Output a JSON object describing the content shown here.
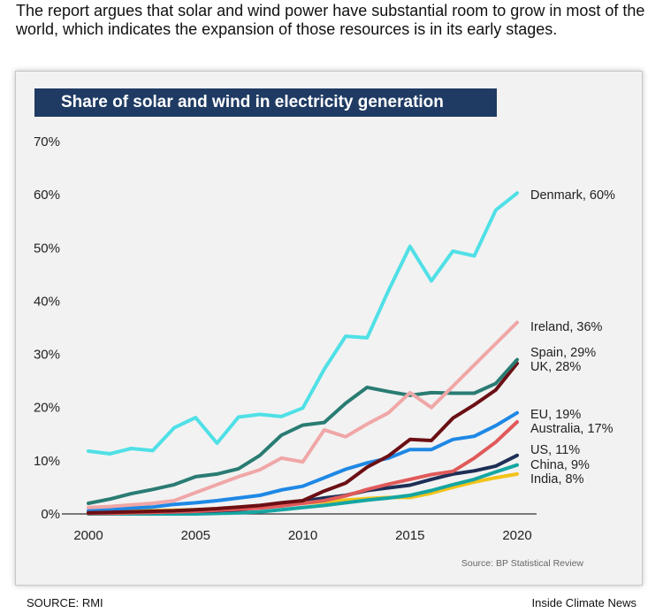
{
  "caption": "The report argues that solar and wind power have substantial room to grow in most of the world, which indicates the expansion of those resources is in its early stages.",
  "footer": {
    "left": "SOURCE: RMI",
    "right": "Inside Climate News"
  },
  "chart_data": {
    "type": "line",
    "title": "Share of solar and wind in electricity generation",
    "source": "Source: BP Statistical Review",
    "xlabel": "",
    "ylabel": "",
    "x_ticks": [
      2000,
      2005,
      2010,
      2015,
      2020
    ],
    "y_ticks": [
      "0%",
      "10%",
      "20%",
      "30%",
      "40%",
      "50%",
      "60%",
      "70%"
    ],
    "xlim": [
      1999,
      2021
    ],
    "ylim": [
      0,
      70
    ],
    "grid": false,
    "legend": "direct labels at line ends",
    "x": [
      2000,
      2001,
      2002,
      2003,
      2004,
      2005,
      2006,
      2007,
      2008,
      2009,
      2010,
      2011,
      2012,
      2013,
      2014,
      2015,
      2016,
      2017,
      2018,
      2019,
      2020
    ],
    "series": [
      {
        "name": "Denmark",
        "label": "Denmark, 60%",
        "color": "#4fe0e6",
        "values": [
          11.8,
          11.3,
          12.3,
          11.9,
          16.2,
          18.1,
          13.3,
          18.2,
          18.7,
          18.3,
          19.9,
          27.2,
          33.4,
          33.1,
          42.0,
          50.3,
          43.8,
          49.4,
          48.5,
          57.1,
          60.3
        ]
      },
      {
        "name": "Ireland",
        "label": "Ireland, 36%",
        "color": "#f0a7a7",
        "values": [
          1.2,
          1.4,
          1.7,
          2.0,
          2.5,
          4.0,
          5.5,
          7.0,
          8.3,
          10.5,
          9.8,
          15.8,
          14.5,
          16.9,
          19.0,
          22.8,
          20.0,
          24.0,
          28.0,
          32.0,
          36.0
        ]
      },
      {
        "name": "Spain",
        "label": "Spain, 29%",
        "color": "#2a7c73",
        "values": [
          2.0,
          2.8,
          3.8,
          4.6,
          5.5,
          7.0,
          7.5,
          8.5,
          11.0,
          14.8,
          16.7,
          17.2,
          20.8,
          23.8,
          23.0,
          22.3,
          22.8,
          22.7,
          22.7,
          24.5,
          29.0
        ]
      },
      {
        "name": "UK",
        "label": "UK, 28%",
        "color": "#6b0f14",
        "values": [
          0.2,
          0.3,
          0.4,
          0.5,
          0.6,
          0.8,
          1.0,
          1.3,
          1.6,
          2.1,
          2.5,
          4.3,
          5.8,
          8.8,
          10.9,
          14.0,
          13.8,
          18.0,
          20.5,
          23.3,
          28.3
        ]
      },
      {
        "name": "EU",
        "label": "EU, 19%",
        "color": "#1e88e5",
        "values": [
          0.6,
          0.8,
          1.1,
          1.3,
          1.8,
          2.1,
          2.5,
          3.0,
          3.5,
          4.5,
          5.2,
          6.8,
          8.4,
          9.6,
          10.5,
          12.1,
          12.1,
          14.0,
          14.6,
          16.6,
          19.0
        ]
      },
      {
        "name": "Australia",
        "label": "Australia, 17%",
        "color": "#e05a5a",
        "values": [
          0.1,
          0.1,
          0.2,
          0.3,
          0.4,
          0.5,
          0.7,
          0.9,
          1.1,
          1.5,
          2.0,
          2.5,
          3.4,
          4.6,
          5.6,
          6.5,
          7.4,
          8.0,
          10.5,
          13.5,
          17.3
        ]
      },
      {
        "name": "US",
        "label": "US, 11%",
        "color": "#1d2f57",
        "values": [
          0.1,
          0.2,
          0.3,
          0.3,
          0.4,
          0.5,
          0.6,
          0.8,
          1.2,
          1.8,
          2.4,
          3.0,
          3.5,
          4.4,
          4.9,
          5.4,
          6.5,
          7.5,
          8.1,
          9.0,
          11.0
        ]
      },
      {
        "name": "China",
        "label": "China, 9%",
        "color": "#15a6a2",
        "values": [
          0.0,
          0.0,
          0.0,
          0.0,
          0.0,
          0.0,
          0.1,
          0.2,
          0.4,
          0.8,
          1.2,
          1.6,
          2.1,
          2.6,
          3.0,
          3.5,
          4.4,
          5.5,
          6.5,
          7.9,
          9.2
        ]
      },
      {
        "name": "India",
        "label": "India, 8%",
        "color": "#f2c318",
        "values": [
          0.3,
          0.4,
          0.5,
          0.6,
          0.7,
          0.8,
          1.0,
          1.3,
          1.5,
          1.7,
          2.0,
          2.3,
          2.6,
          2.9,
          3.1,
          3.1,
          3.9,
          5.0,
          6.0,
          6.8,
          7.5
        ]
      }
    ]
  }
}
